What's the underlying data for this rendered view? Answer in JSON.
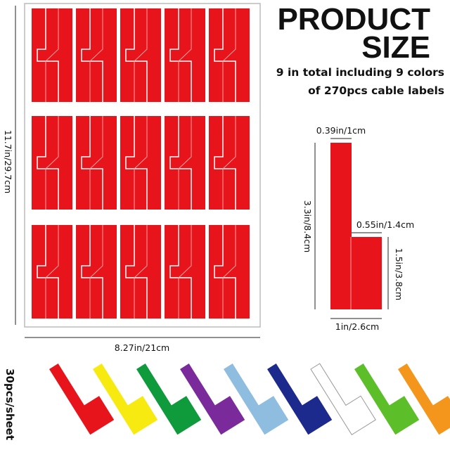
{
  "header": {
    "title_line1": "PRODUCT",
    "title_line2": "SIZE",
    "subtitle_line1": "9 in total  including 9 colors",
    "subtitle_line2": "of 270pcs cable labels"
  },
  "dimensions": {
    "tail_width": "0.39in/1cm",
    "total_height": "3.3in/8.4cm",
    "flag_width": "0.55in/1.4cm",
    "flag_height": "1.5in/3.8cm",
    "total_width": "1in/2.6cm",
    "sheet_height": "11.7in/29.7cm",
    "sheet_width": "8.27in/21cm"
  },
  "sheet_count": "30pcs/sheet"
}
